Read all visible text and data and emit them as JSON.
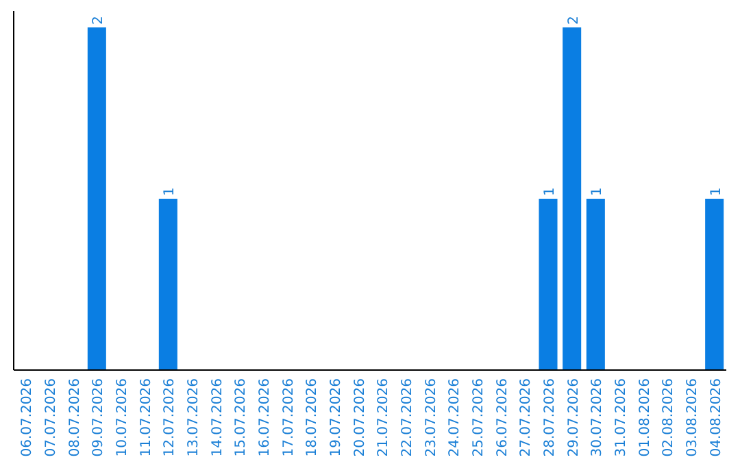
{
  "chart_data": {
    "type": "bar",
    "categories": [
      "06.07.2026",
      "07.07.2026",
      "08.07.2026",
      "09.07.2026",
      "10.07.2026",
      "11.07.2026",
      "12.07.2026",
      "13.07.2026",
      "14.07.2026",
      "15.07.2026",
      "16.07.2026",
      "17.07.2026",
      "18.07.2026",
      "19.07.2026",
      "20.07.2026",
      "21.07.2026",
      "22.07.2026",
      "23.07.2026",
      "24.07.2026",
      "25.07.2026",
      "26.07.2026",
      "27.07.2026",
      "28.07.2026",
      "29.07.2026",
      "30.07.2026",
      "31.07.2026",
      "01.08.2026",
      "02.08.2026",
      "03.08.2026",
      "04.08.2026"
    ],
    "values": [
      0,
      0,
      0,
      2,
      0,
      0,
      1,
      0,
      0,
      0,
      0,
      0,
      0,
      0,
      0,
      0,
      0,
      0,
      0,
      0,
      0,
      0,
      1,
      2,
      1,
      0,
      0,
      0,
      0,
      1
    ],
    "value_labels": [
      null,
      null,
      null,
      "2",
      null,
      null,
      "1",
      null,
      null,
      null,
      null,
      null,
      null,
      null,
      null,
      null,
      null,
      null,
      null,
      null,
      null,
      null,
      "1",
      "2",
      "1",
      null,
      null,
      null,
      null,
      "1"
    ],
    "color": "#0a7ee3",
    "tick_labels": "x"
  }
}
